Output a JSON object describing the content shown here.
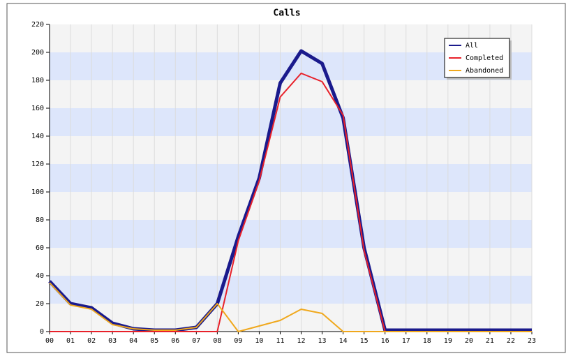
{
  "chart_data": {
    "type": "line",
    "title": "Calls",
    "categories": [
      "00",
      "01",
      "02",
      "03",
      "04",
      "05",
      "06",
      "07",
      "08",
      "09",
      "10",
      "11",
      "12",
      "13",
      "14",
      "15",
      "16",
      "17",
      "18",
      "19",
      "20",
      "21",
      "22",
      "23"
    ],
    "series": [
      {
        "name": "All",
        "color": "#1a1a8c",
        "values": [
          36,
          20,
          17,
          6,
          2,
          1,
          1,
          3,
          20,
          68,
          110,
          178,
          201,
          192,
          153,
          60,
          1,
          1,
          1,
          1,
          1,
          1,
          1,
          1
        ]
      },
      {
        "name": "Completed",
        "color": "#e8212a",
        "values": [
          0,
          0,
          0,
          0,
          0,
          0,
          0,
          0,
          0,
          65,
          108,
          168,
          185,
          179,
          155,
          58,
          0,
          0,
          0,
          0,
          0,
          0,
          0,
          0
        ]
      },
      {
        "name": "Abandoned",
        "color": "#f0a81c",
        "values": [
          35,
          19,
          16,
          5,
          2,
          1,
          1,
          3,
          20,
          0,
          4,
          8,
          16,
          13,
          0,
          0,
          0,
          0,
          0,
          0,
          0,
          0,
          0,
          0
        ]
      }
    ],
    "ylim": [
      0,
      220
    ],
    "yticks": [
      0,
      20,
      40,
      60,
      80,
      100,
      120,
      140,
      160,
      180,
      200,
      220
    ],
    "grid": true,
    "legend": "top-right"
  }
}
